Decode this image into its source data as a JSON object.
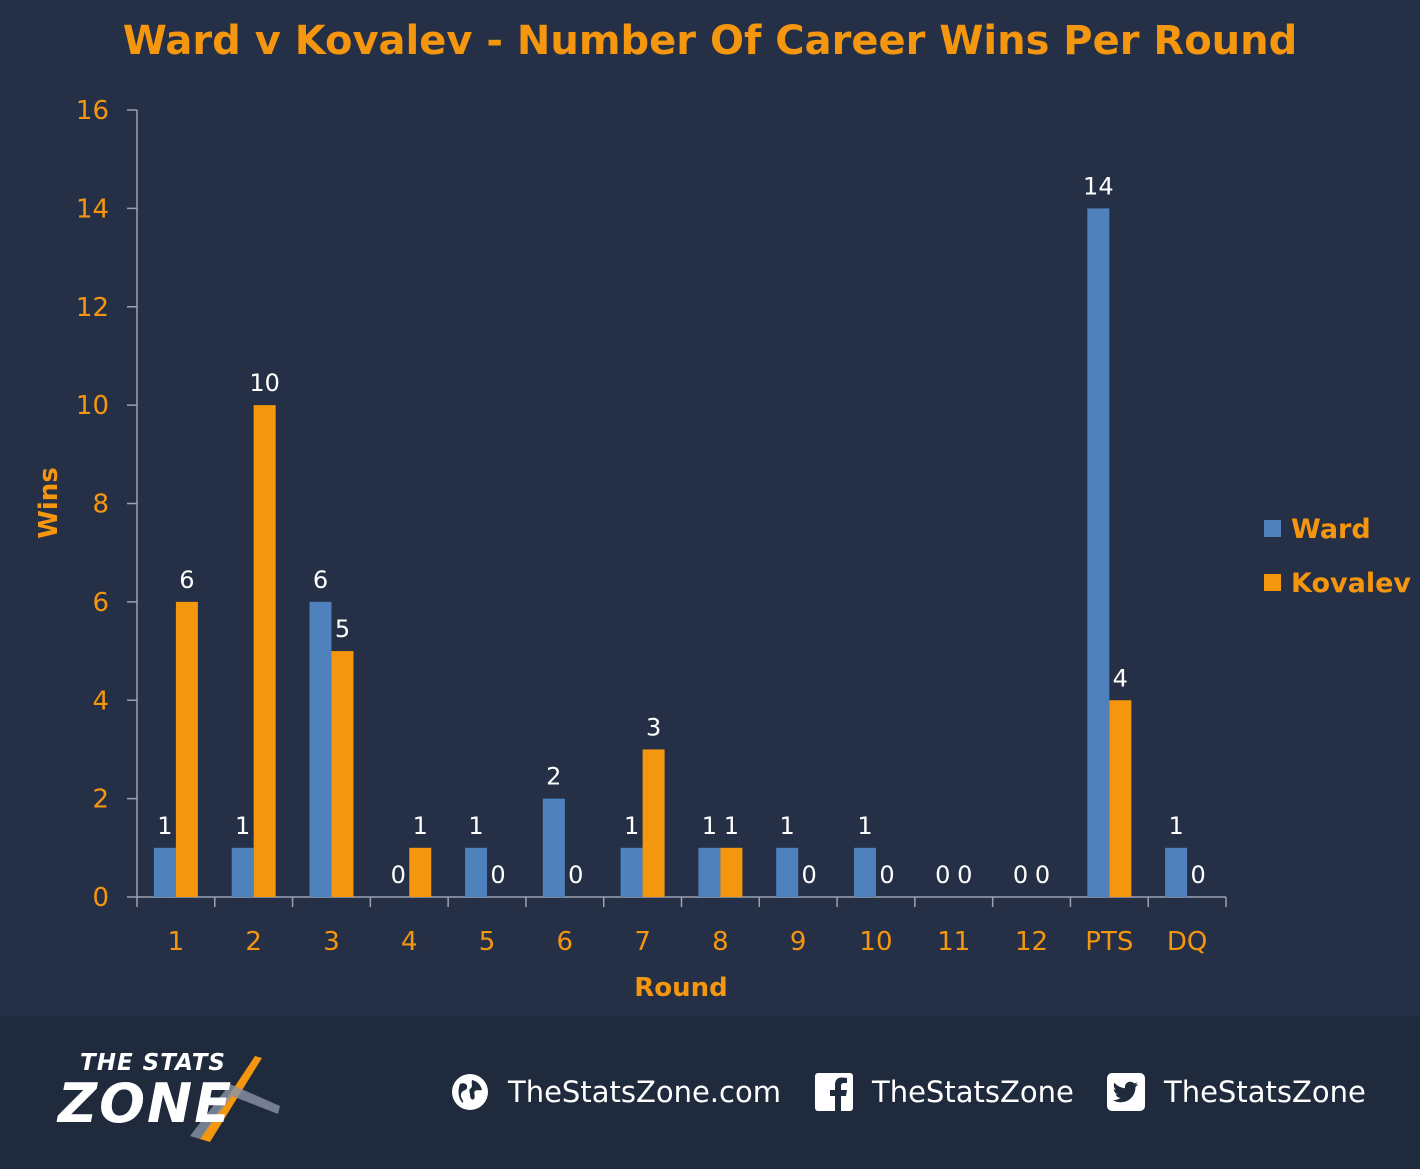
{
  "chart_data": {
    "type": "bar",
    "title": "Ward v Kovalev - Number Of Career Wins Per Round",
    "xlabel": "Round",
    "ylabel": "Wins",
    "ylim": [
      0,
      16
    ],
    "yticks": [
      0,
      2,
      4,
      6,
      8,
      10,
      12,
      14,
      16
    ],
    "categories": [
      "1",
      "2",
      "3",
      "4",
      "5",
      "6",
      "7",
      "8",
      "9",
      "10",
      "11",
      "12",
      "PTS",
      "DQ"
    ],
    "series": [
      {
        "name": "Ward",
        "color": "#4f81bd",
        "values": [
          1,
          1,
          6,
          0,
          1,
          2,
          1,
          1,
          1,
          1,
          0,
          0,
          14,
          1
        ]
      },
      {
        "name": "Kovalev",
        "color": "#f5960f",
        "values": [
          6,
          10,
          5,
          1,
          0,
          0,
          3,
          1,
          0,
          0,
          0,
          0,
          4,
          0
        ]
      }
    ],
    "legend_position": "right",
    "grid": false
  },
  "footer": {
    "logo_top": "THE STATS",
    "logo_main": "ZONE",
    "website": "TheStatsZone.com",
    "facebook": "TheStatsZone",
    "twitter": "TheStatsZone",
    "icons": [
      "globe-icon",
      "facebook-icon",
      "twitter-icon"
    ]
  },
  "colors": {
    "accent": "#f5960f",
    "background": "#253047",
    "footer": "#1f2a3c"
  }
}
